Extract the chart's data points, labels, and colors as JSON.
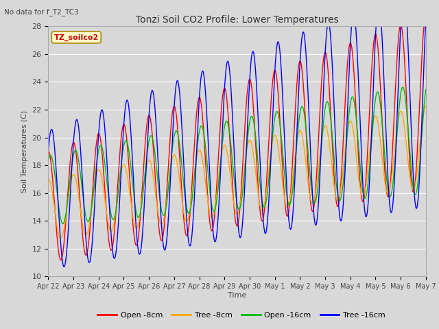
{
  "title": "Tonzi Soil CO2 Profile: Lower Temperatures",
  "subtitle": "No data for f_T2_TC3",
  "ylabel": "Soil Temperatures (C)",
  "xlabel": "Time",
  "ylim": [
    10,
    28
  ],
  "background_color": "#d8d8d8",
  "plot_bg_color": "#d8d8d8",
  "legend_label": "TZ_soilco2",
  "series_labels": [
    "Open -8cm",
    "Tree -8cm",
    "Open -16cm",
    "Tree -16cm"
  ],
  "series_colors": [
    "#ff0000",
    "#ffa500",
    "#00bb00",
    "#0000ff"
  ],
  "xtick_labels": [
    "Apr 22",
    "Apr 23",
    "Apr 24",
    "Apr 25",
    "Apr 26",
    "Apr 27",
    "Apr 28",
    "Apr 29",
    "Apr 30",
    "May 1",
    "May 2",
    "May 3",
    "May 4",
    "May 5",
    "May 6",
    "May 7"
  ],
  "yticks": [
    10,
    12,
    14,
    16,
    18,
    20,
    22,
    24,
    26,
    28
  ],
  "n_days": 15,
  "samples_per_day": 96
}
